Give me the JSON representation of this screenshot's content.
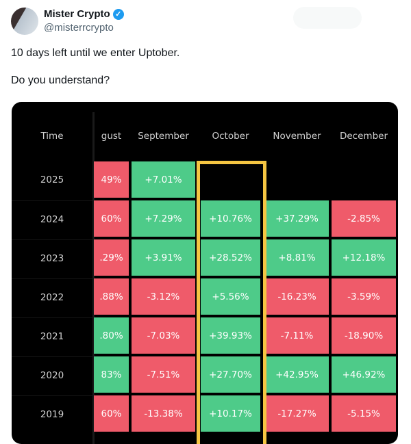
{
  "author": {
    "name": "Mister Crypto",
    "handle": "@misterrcrypto",
    "verified": true
  },
  "tweet": {
    "lines": [
      "10 days left until we enter Uptober.",
      "Do you understand?"
    ]
  },
  "table": {
    "headers": [
      "Time",
      "gust",
      "September",
      "October",
      "November",
      "December"
    ],
    "rows": [
      {
        "year": "2025",
        "cells": [
          {
            "v": "49%",
            "c": "red"
          },
          {
            "v": "+7.01%",
            "c": "green"
          },
          {
            "v": "",
            "c": "empty"
          },
          {
            "v": "",
            "c": "empty"
          },
          {
            "v": "",
            "c": "empty"
          }
        ]
      },
      {
        "year": "2024",
        "cells": [
          {
            "v": "60%",
            "c": "red"
          },
          {
            "v": "+7.29%",
            "c": "green"
          },
          {
            "v": "+10.76%",
            "c": "green"
          },
          {
            "v": "+37.29%",
            "c": "green"
          },
          {
            "v": "-2.85%",
            "c": "red"
          }
        ]
      },
      {
        "year": "2023",
        "cells": [
          {
            "v": ".29%",
            "c": "red"
          },
          {
            "v": "+3.91%",
            "c": "green"
          },
          {
            "v": "+28.52%",
            "c": "green"
          },
          {
            "v": "+8.81%",
            "c": "green"
          },
          {
            "v": "+12.18%",
            "c": "green"
          }
        ]
      },
      {
        "year": "2022",
        "cells": [
          {
            "v": ".88%",
            "c": "red"
          },
          {
            "v": "-3.12%",
            "c": "red"
          },
          {
            "v": "+5.56%",
            "c": "green"
          },
          {
            "v": "-16.23%",
            "c": "red"
          },
          {
            "v": "-3.59%",
            "c": "red"
          }
        ]
      },
      {
        "year": "2021",
        "cells": [
          {
            "v": ".80%",
            "c": "green"
          },
          {
            "v": "-7.03%",
            "c": "red"
          },
          {
            "v": "+39.93%",
            "c": "green"
          },
          {
            "v": "-7.11%",
            "c": "red"
          },
          {
            "v": "-18.90%",
            "c": "red"
          }
        ]
      },
      {
        "year": "2020",
        "cells": [
          {
            "v": "83%",
            "c": "green"
          },
          {
            "v": "-7.51%",
            "c": "red"
          },
          {
            "v": "+27.70%",
            "c": "green"
          },
          {
            "v": "+42.95%",
            "c": "green"
          },
          {
            "v": "+46.92%",
            "c": "green"
          }
        ]
      },
      {
        "year": "2019",
        "cells": [
          {
            "v": "60%",
            "c": "red"
          },
          {
            "v": "-13.38%",
            "c": "red"
          },
          {
            "v": "+10.17%",
            "c": "green"
          },
          {
            "v": "-17.27%",
            "c": "red"
          },
          {
            "v": "-5.15%",
            "c": "red"
          }
        ]
      }
    ],
    "highlight_column": "October",
    "colors": {
      "green": "#4ecb89",
      "red": "#ef5b6a",
      "highlight": "#f5c542"
    }
  }
}
